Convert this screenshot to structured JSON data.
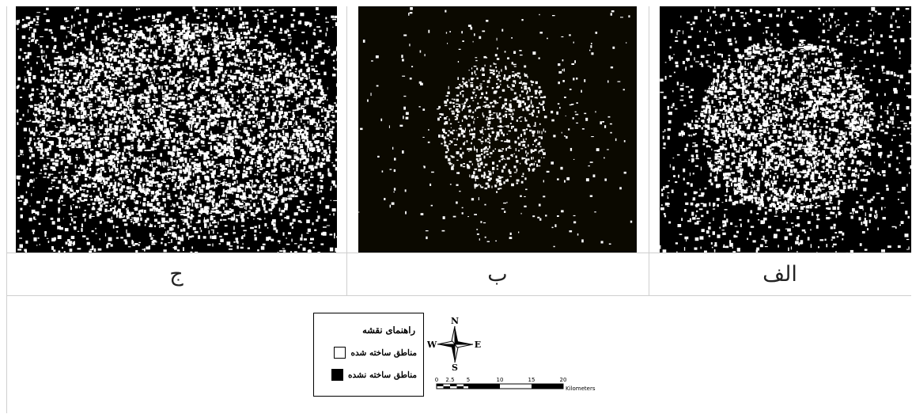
{
  "panels": [
    {
      "id": "alef",
      "caption": "الف",
      "pattern": "dense-urban-core"
    },
    {
      "id": "be",
      "caption": "ب",
      "pattern": "sparse-urban-core"
    },
    {
      "id": "jim",
      "caption": "ج",
      "pattern": "dense-urban-expanded"
    }
  ],
  "legend": {
    "title": "راهنمای نقشه",
    "built": "مناطق ساخته شده",
    "unbuilt": "مناطق ساخته نشده",
    "built_color": "#ffffff",
    "unbuilt_color": "#000000"
  },
  "compass": {
    "n": "N",
    "s": "S",
    "e": "E",
    "w": "W"
  },
  "scale": {
    "ticks": [
      "0",
      "2.5",
      "5",
      "10",
      "15",
      "20"
    ],
    "unit": "Kilometers"
  },
  "colors": {
    "border": "#cfcfcf",
    "map_bg": "#000000",
    "map_fg": "#ffffff"
  }
}
